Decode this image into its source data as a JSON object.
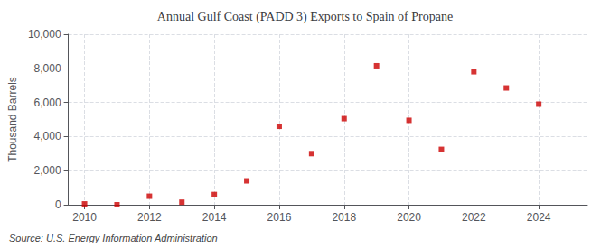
{
  "chart_data": {
    "type": "scatter",
    "title": "Annual Gulf Coast (PADD 3) Exports to Spain of Propane",
    "ylabel": "Thousand Barrels",
    "annotation": "Source: U.S. Energy Information Administration",
    "x": [
      2010,
      2011,
      2012,
      2013,
      2014,
      2015,
      2016,
      2017,
      2018,
      2019,
      2020,
      2021,
      2022,
      2023,
      2024
    ],
    "values": [
      50,
      0,
      500,
      150,
      600,
      1400,
      4600,
      3000,
      5050,
      8150,
      4950,
      3250,
      7800,
      6850,
      5900
    ],
    "color": "#cc0000",
    "marker": "square",
    "xlim": [
      2009.5,
      2025.5
    ],
    "ylim": [
      0,
      10000
    ],
    "xticks": [
      2010,
      2012,
      2014,
      2016,
      2018,
      2020,
      2022,
      2024
    ],
    "yticks": [
      0,
      {
        "value": 2000,
        "label": "2,000"
      },
      {
        "value": 4000,
        "label": "4,000"
      },
      {
        "value": 6000,
        "label": "6,000"
      },
      {
        "value": 8000,
        "label": "8,000"
      },
      {
        "value": 10000,
        "label": "10,000"
      }
    ],
    "grid": true
  }
}
